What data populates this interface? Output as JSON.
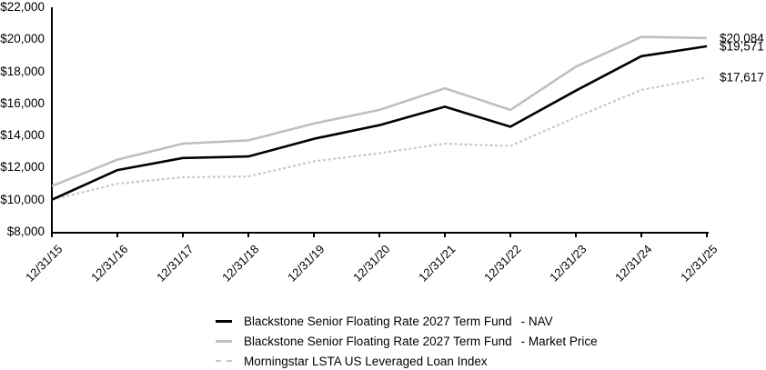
{
  "chart_data": {
    "type": "line",
    "title": "",
    "xlabel": "",
    "ylabel": "",
    "grid": false,
    "legend_position": "bottom",
    "ylim": [
      8000,
      22000
    ],
    "y_tick_labels": [
      "$22,000",
      "$20,000",
      "$18,000",
      "$16,000",
      "$14,000",
      "$12,000",
      "$10,000",
      "$8,000"
    ],
    "categories": [
      "12/31/15",
      "12/31/16",
      "12/31/17",
      "12/31/18",
      "12/31/19",
      "12/31/20",
      "12/31/21",
      "12/31/22",
      "12/31/23",
      "12/31/24",
      "12/31/25"
    ],
    "series": [
      {
        "name": "Blackstone Senior Floating Rate 2027 Term Fund - NAV",
        "color": "#000000",
        "style": "solid",
        "values": [
          10000,
          11850,
          12600,
          12700,
          13800,
          14650,
          15800,
          14550,
          16800,
          18950,
          19571
        ],
        "end_label": "$19,571"
      },
      {
        "name": "Blackstone Senior Floating Rate 2027 Term Fund - Market Price",
        "color": "#bfbfbf",
        "style": "solid",
        "values": [
          10850,
          12500,
          13500,
          13700,
          14750,
          15600,
          16950,
          15600,
          18300,
          20150,
          20084
        ],
        "end_label": "$20,084"
      },
      {
        "name": "Morningstar LSTA US Leveraged Loan Index",
        "color": "#c8c8c8",
        "style": "dashed",
        "values": [
          10000,
          11000,
          11400,
          11450,
          12400,
          12900,
          13500,
          13350,
          15150,
          16850,
          17617
        ],
        "end_label": "$17,617"
      }
    ]
  },
  "legend": {
    "items": [
      {
        "name": "Blackstone Senior Floating Rate 2027 Term Fund",
        "suffix": "- NAV"
      },
      {
        "name": "Blackstone Senior Floating Rate 2027 Term Fund",
        "suffix": "- Market Price"
      },
      {
        "name": "Morningstar LSTA US Leveraged Loan Index",
        "suffix": ""
      }
    ]
  }
}
